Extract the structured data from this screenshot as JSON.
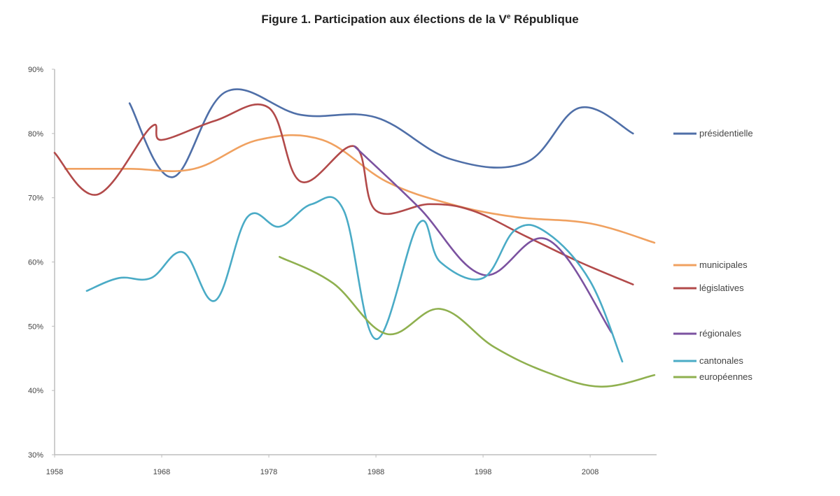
{
  "chart_data": {
    "type": "line",
    "title": "Figure 1. Participation aux élections de la V",
    "title_sup": "e",
    "title_end": " République",
    "xlabel": "",
    "ylabel": "",
    "xlim": [
      1958,
      2014.2
    ],
    "ylim": [
      30,
      90
    ],
    "x_ticks": [
      1958,
      1968,
      1978,
      1988,
      1998,
      2008
    ],
    "x_tick_labels": [
      "1958",
      "1968",
      "1978",
      "1988",
      "1998",
      "2008"
    ],
    "y_ticks": [
      30,
      40,
      50,
      60,
      70,
      80,
      90
    ],
    "y_tick_labels": [
      "30%",
      "40%",
      "50%",
      "60%",
      "70%",
      "80%",
      "90%"
    ],
    "grid": false,
    "legend_position": "right",
    "series": [
      {
        "name": "présidentielle",
        "color": "#4f6fa8",
        "x": [
          1965,
          1969,
          1974,
          1981,
          1988,
          1995,
          2002,
          2007,
          2012
        ],
        "y": [
          84.7,
          73.2,
          86.5,
          82.9,
          82.5,
          76.0,
          75.5,
          84.0,
          80.0
        ]
      },
      {
        "name": "municipales",
        "color": "#f0a160",
        "x": [
          1959,
          1965,
          1971,
          1977,
          1983,
          1989,
          1995,
          2001,
          2008,
          2014
        ],
        "y": [
          74.5,
          74.5,
          74.5,
          79.0,
          79.0,
          72.5,
          69.0,
          67.0,
          66.0,
          63.0
        ]
      },
      {
        "name": "législatives",
        "color": "#b24a4a",
        "x": [
          1958,
          1962,
          1967,
          1968,
          1973,
          1978,
          1981,
          1986,
          1988,
          1993,
          1997,
          2002,
          2007,
          2012
        ],
        "y": [
          77.0,
          70.5,
          81.0,
          79.0,
          82.0,
          84.0,
          72.5,
          78.0,
          68.0,
          69.0,
          68.0,
          64.0,
          60.0,
          56.5
        ]
      },
      {
        "name": "régionales",
        "color": "#7b52a0",
        "x": [
          1986,
          1992,
          1998,
          2004,
          2010
        ],
        "y": [
          78.0,
          68.5,
          58.0,
          63.5,
          49.0
        ]
      },
      {
        "name": "cantonales",
        "color": "#4aabc6",
        "x": [
          1961,
          1964,
          1967,
          1970,
          1973,
          1976,
          1979,
          1982,
          1985,
          1988,
          1992,
          1994,
          1998,
          2001,
          2004,
          2008,
          2011
        ],
        "y": [
          55.5,
          57.5,
          57.5,
          61.5,
          54.0,
          67.0,
          65.5,
          69.0,
          68.0,
          48.0,
          66.0,
          60.0,
          57.5,
          65.0,
          64.5,
          57.0,
          44.5
        ]
      },
      {
        "name": "européennes",
        "color": "#8fb04f",
        "x": [
          1979,
          1984,
          1989,
          1994,
          1999,
          2004,
          2009,
          2014
        ],
        "y": [
          60.8,
          56.7,
          48.8,
          52.7,
          46.8,
          42.8,
          40.6,
          42.4
        ]
      }
    ]
  }
}
